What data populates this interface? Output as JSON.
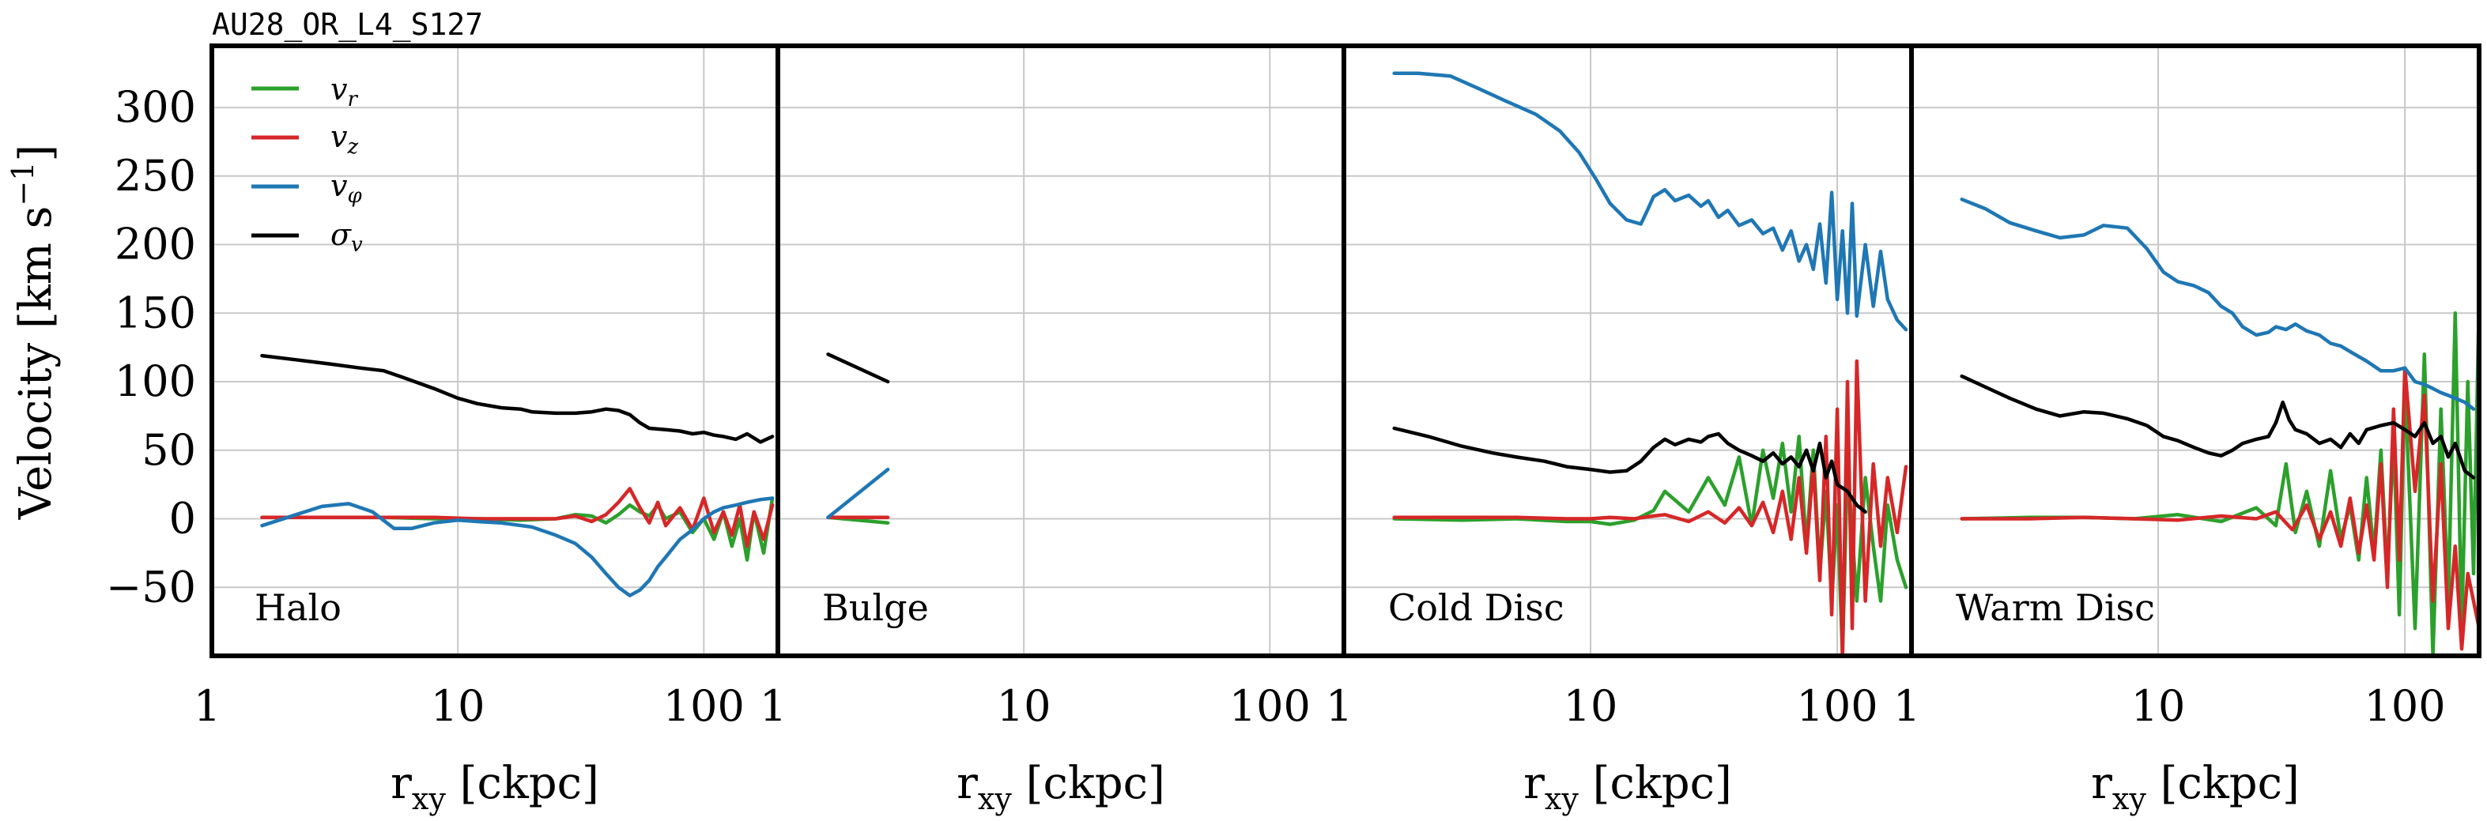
{
  "figure_title": "AU28_OR_L4_S127",
  "colors": {
    "v_r": "#2ca02c",
    "v_z": "#d62728",
    "v_phi": "#1f77b4",
    "sigma_v": "#000000"
  },
  "chart_data": [
    {
      "type": "line",
      "panel_label": "Halo",
      "xscale": "log",
      "xlim": [
        1,
        200
      ],
      "ylim": [
        -100,
        345
      ],
      "xticks": [
        "1",
        "10",
        "100"
      ],
      "yticks": [
        "300",
        "250",
        "200",
        "150",
        "100",
        "50",
        "0",
        "−50"
      ],
      "xlabel": "r_xy [ckpc]",
      "ylabel": "Velocity [km s^-1]",
      "legend": {
        "placement": "top-left",
        "entries": [
          "v_r",
          "v_z",
          "v_φ",
          "σ_v"
        ]
      },
      "grid": true,
      "series": [
        {
          "name": "v_r",
          "color_key": "v_r",
          "x": [
            1.6,
            3,
            5,
            8,
            12,
            18,
            25,
            30,
            35,
            40,
            45,
            50,
            55,
            60,
            65,
            70,
            80,
            90,
            100,
            110,
            120,
            130,
            140,
            150,
            160,
            175,
            190
          ],
          "y": [
            1,
            1,
            1,
            0,
            0,
            -1,
            0,
            3,
            2,
            -3,
            3,
            10,
            5,
            2,
            10,
            0,
            5,
            -10,
            0,
            -15,
            5,
            -20,
            0,
            -30,
            5,
            -25,
            15
          ]
        },
        {
          "name": "v_z",
          "color_key": "v_z",
          "x": [
            1.6,
            3,
            5,
            8,
            12,
            18,
            25,
            30,
            35,
            40,
            45,
            50,
            55,
            60,
            65,
            70,
            80,
            90,
            100,
            110,
            120,
            130,
            140,
            150,
            160,
            175,
            190
          ],
          "y": [
            1,
            1,
            1,
            1,
            0,
            0,
            0,
            2,
            -2,
            3,
            12,
            22,
            8,
            -3,
            12,
            -5,
            8,
            -8,
            15,
            -10,
            5,
            -12,
            10,
            -20,
            5,
            -15,
            10
          ]
        },
        {
          "name": "v_φ",
          "color_key": "v_phi",
          "x": [
            1.6,
            2.2,
            2.8,
            3.6,
            4.5,
            5.5,
            6.5,
            8,
            10,
            12,
            15,
            20,
            25,
            30,
            35,
            40,
            45,
            50,
            55,
            60,
            65,
            70,
            80,
            90,
            100,
            110,
            120,
            135,
            150,
            170,
            190
          ],
          "y": [
            -5,
            3,
            9,
            11,
            5,
            -7,
            -7,
            -3,
            -1,
            -2,
            -3,
            -6,
            -12,
            -18,
            -28,
            -40,
            -50,
            -56,
            -52,
            -45,
            -35,
            -28,
            -15,
            -8,
            0,
            5,
            8,
            10,
            12,
            14,
            15
          ]
        },
        {
          "name": "σ_v",
          "color_key": "sigma_v",
          "x": [
            1.6,
            2.2,
            3,
            4,
            5,
            6,
            8,
            10,
            12,
            15,
            18,
            20,
            25,
            30,
            35,
            40,
            45,
            50,
            55,
            60,
            70,
            80,
            90,
            100,
            110,
            120,
            135,
            150,
            170,
            190
          ],
          "y": [
            119,
            116,
            113,
            110,
            108,
            103,
            95,
            88,
            84,
            81,
            80,
            78,
            77,
            77,
            78,
            80,
            79,
            76,
            70,
            66,
            65,
            64,
            62,
            63,
            61,
            60,
            58,
            62,
            56,
            60
          ]
        }
      ]
    },
    {
      "type": "line",
      "panel_label": "Bulge",
      "xscale": "log",
      "xlim": [
        1,
        200
      ],
      "ylim": [
        -100,
        345
      ],
      "xticks": [
        "1",
        "10",
        "100"
      ],
      "xlabel": "r_xy [ckpc]",
      "grid": true,
      "series": [
        {
          "name": "v_r",
          "color_key": "v_r",
          "x": [
            1.6,
            2.8
          ],
          "y": [
            1,
            -3
          ]
        },
        {
          "name": "v_z",
          "color_key": "v_z",
          "x": [
            1.6,
            2.8
          ],
          "y": [
            1,
            1
          ]
        },
        {
          "name": "v_φ",
          "color_key": "v_phi",
          "x": [
            1.6,
            2.8
          ],
          "y": [
            1,
            36
          ]
        },
        {
          "name": "σ_v",
          "color_key": "sigma_v",
          "x": [
            1.6,
            2.8
          ],
          "y": [
            120,
            100
          ]
        }
      ]
    },
    {
      "type": "line",
      "panel_label": "Cold Disc",
      "xscale": "log",
      "xlim": [
        1,
        200
      ],
      "ylim": [
        -100,
        345
      ],
      "xticks": [
        "1",
        "10",
        "100"
      ],
      "xlabel": "r_xy [ckpc]",
      "grid": true,
      "series": [
        {
          "name": "v_r",
          "color_key": "v_r",
          "x": [
            1.6,
            3,
            5,
            8,
            10,
            12,
            15,
            18,
            20,
            25,
            30,
            35,
            40,
            45,
            50,
            55,
            60,
            65,
            70,
            75,
            80,
            85,
            90,
            95,
            100,
            105,
            110,
            120,
            130,
            140,
            150,
            160,
            175,
            190
          ],
          "y": [
            0,
            -1,
            0,
            -2,
            -2,
            -4,
            -1,
            6,
            20,
            5,
            30,
            10,
            45,
            -5,
            50,
            15,
            55,
            5,
            60,
            -20,
            50,
            -40,
            20,
            -60,
            10,
            -100,
            40,
            -60,
            30,
            -20,
            -60,
            10,
            -30,
            -50
          ]
        },
        {
          "name": "v_z",
          "color_key": "v_z",
          "x": [
            1.6,
            3,
            5,
            8,
            10,
            12,
            15,
            18,
            20,
            25,
            30,
            35,
            40,
            45,
            50,
            55,
            60,
            65,
            70,
            75,
            80,
            85,
            90,
            95,
            100,
            105,
            110,
            115,
            120,
            130,
            140,
            150,
            160,
            175,
            190
          ],
          "y": [
            1,
            1,
            1,
            0,
            0,
            1,
            0,
            2,
            3,
            -2,
            5,
            -3,
            8,
            -5,
            12,
            -10,
            20,
            -15,
            30,
            -25,
            40,
            -45,
            60,
            -70,
            80,
            -100,
            100,
            -80,
            115,
            -60,
            40,
            -20,
            30,
            -10,
            38
          ]
        },
        {
          "name": "v_φ",
          "color_key": "v_phi",
          "x": [
            1.6,
            2,
            2.7,
            3.5,
            4.5,
            6,
            7.5,
            9,
            10.5,
            12,
            14,
            16,
            17,
            18,
            20,
            22,
            25,
            28,
            30,
            33,
            36,
            40,
            45,
            50,
            55,
            60,
            65,
            70,
            75,
            80,
            85,
            90,
            95,
            100,
            105,
            110,
            115,
            120,
            130,
            140,
            150,
            160,
            175,
            190
          ],
          "y": [
            325,
            325,
            323,
            314,
            305,
            295,
            283,
            267,
            248,
            230,
            218,
            215,
            225,
            235,
            240,
            232,
            236,
            228,
            232,
            220,
            225,
            214,
            218,
            208,
            212,
            196,
            210,
            188,
            200,
            182,
            215,
            172,
            238,
            160,
            210,
            150,
            230,
            148,
            200,
            155,
            195,
            160,
            145,
            138
          ]
        },
        {
          "name": "σ_v",
          "color_key": "sigma_v",
          "x": [
            1.6,
            2.2,
            3,
            4,
            5,
            6.5,
            8,
            10,
            12,
            14,
            16,
            18,
            20,
            22,
            25,
            28,
            30,
            33,
            36,
            40,
            45,
            50,
            55,
            60,
            65,
            70,
            75,
            80,
            85,
            90,
            95,
            100,
            110,
            120,
            130
          ],
          "y": [
            66,
            60,
            53,
            48,
            45,
            42,
            38,
            36,
            34,
            35,
            42,
            52,
            58,
            54,
            58,
            56,
            60,
            62,
            55,
            50,
            46,
            42,
            48,
            40,
            45,
            38,
            50,
            35,
            55,
            30,
            42,
            25,
            20,
            10,
            5
          ]
        }
      ]
    },
    {
      "type": "line",
      "panel_label": "Warm Disc",
      "xscale": "log",
      "xlim": [
        1,
        200
      ],
      "ylim": [
        -100,
        345
      ],
      "xticks": [
        "1",
        "10",
        "100"
      ],
      "xlabel": "r_xy [ckpc]",
      "grid": true,
      "series": [
        {
          "name": "v_r",
          "color_key": "v_r",
          "x": [
            1.6,
            3,
            5,
            8,
            12,
            18,
            25,
            30,
            33,
            36,
            40,
            45,
            50,
            55,
            60,
            65,
            70,
            75,
            80,
            85,
            90,
            95,
            100,
            110,
            120,
            130,
            140,
            150,
            160,
            170,
            180,
            190,
            200
          ],
          "y": [
            0,
            1,
            1,
            0,
            3,
            -2,
            8,
            -5,
            40,
            -10,
            20,
            -20,
            35,
            -15,
            10,
            -30,
            30,
            -25,
            50,
            -40,
            60,
            -70,
            100,
            -80,
            120,
            -100,
            80,
            -60,
            150,
            -80,
            100,
            -40,
            160
          ]
        },
        {
          "name": "v_z",
          "color_key": "v_z",
          "x": [
            1.6,
            3,
            5,
            8,
            12,
            18,
            25,
            30,
            35,
            40,
            45,
            50,
            55,
            60,
            65,
            70,
            75,
            80,
            85,
            90,
            95,
            100,
            110,
            120,
            130,
            140,
            150,
            160,
            170,
            180,
            190,
            200
          ],
          "y": [
            0,
            0,
            1,
            0,
            -1,
            2,
            0,
            5,
            -8,
            10,
            -15,
            5,
            -20,
            15,
            -25,
            10,
            -30,
            40,
            -50,
            80,
            -30,
            110,
            20,
            90,
            -60,
            40,
            -80,
            -20,
            -95,
            -40,
            -60,
            -80
          ]
        },
        {
          "name": "v_φ",
          "color_key": "v_phi",
          "x": [
            1.6,
            2,
            2.5,
            3.2,
            4,
            5,
            6,
            7.5,
            9,
            10.5,
            12,
            14,
            16,
            18,
            20,
            22,
            25,
            28,
            30,
            33,
            36,
            40,
            45,
            50,
            55,
            60,
            70,
            80,
            90,
            100,
            110,
            120,
            130,
            140,
            150,
            160,
            175,
            190
          ],
          "y": [
            233,
            226,
            216,
            210,
            205,
            207,
            214,
            212,
            197,
            180,
            173,
            170,
            165,
            155,
            150,
            140,
            134,
            136,
            140,
            138,
            142,
            137,
            134,
            128,
            126,
            122,
            115,
            108,
            108,
            110,
            100,
            98,
            95,
            92,
            90,
            88,
            85,
            80
          ]
        },
        {
          "name": "σ_v",
          "color_key": "sigma_v",
          "x": [
            1.6,
            2,
            2.5,
            3.2,
            4,
            5,
            6,
            7.5,
            9,
            10.5,
            12,
            14,
            16,
            18,
            20,
            22,
            25,
            28,
            30,
            32,
            34,
            36,
            40,
            45,
            50,
            55,
            60,
            65,
            70,
            80,
            90,
            100,
            110,
            120,
            130,
            140,
            150,
            160,
            175,
            190
          ],
          "y": [
            104,
            96,
            88,
            80,
            75,
            78,
            77,
            73,
            68,
            60,
            57,
            52,
            48,
            46,
            50,
            55,
            58,
            60,
            70,
            85,
            72,
            65,
            62,
            55,
            58,
            52,
            62,
            55,
            65,
            68,
            70,
            65,
            60,
            70,
            55,
            60,
            45,
            55,
            35,
            30
          ]
        }
      ]
    }
  ]
}
